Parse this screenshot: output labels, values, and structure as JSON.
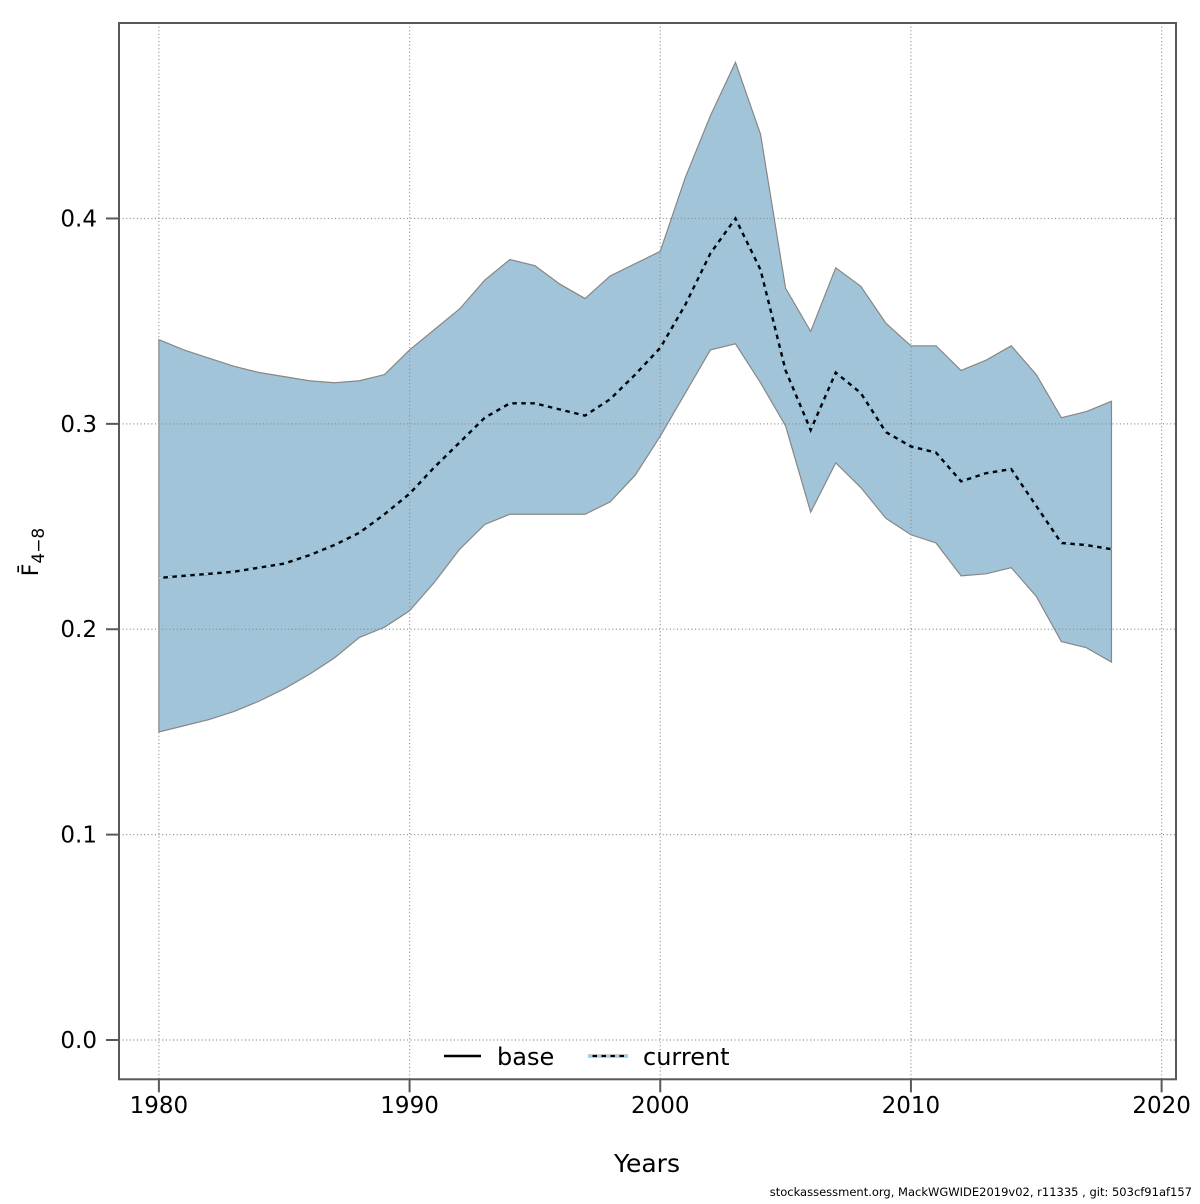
{
  "page": {
    "footer": "stockassessment.org, MackWGWIDE2019v02, r11335 , git: 503cf91af157"
  },
  "chart_data": {
    "type": "line",
    "title": "",
    "xlabel": "Years",
    "ylabel_base": "F̄",
    "ylabel_sub": "4−8",
    "grid": true,
    "legend_position": "bottom-center",
    "x_ticks": [
      1980,
      1990,
      2000,
      2010,
      2020
    ],
    "y_ticks": [
      "0.0",
      "0.1",
      "0.2",
      "0.3",
      "0.4"
    ],
    "xlim": [
      1978.4,
      2020.6
    ],
    "ylim": [
      -0.019,
      0.495
    ],
    "years": [
      1980,
      1981,
      1982,
      1983,
      1984,
      1985,
      1986,
      1987,
      1988,
      1989,
      1990,
      1991,
      1992,
      1993,
      1994,
      1995,
      1996,
      1997,
      1998,
      1999,
      2000,
      2001,
      2002,
      2003,
      2004,
      2005,
      2006,
      2007,
      2008,
      2009,
      2010,
      2011,
      2012,
      2013,
      2014,
      2015,
      2016,
      2017,
      2018
    ],
    "series": [
      {
        "name": "base",
        "style": "solid",
        "color": "#000000"
      },
      {
        "name": "current",
        "style": "dotted",
        "color": "#9fd0ec"
      }
    ],
    "series_note": "base and current lines coincide exactly in the plot",
    "mean": [
      0.225,
      0.226,
      0.227,
      0.228,
      0.23,
      0.232,
      0.236,
      0.241,
      0.247,
      0.256,
      0.266,
      0.279,
      0.291,
      0.303,
      0.31,
      0.31,
      0.307,
      0.304,
      0.312,
      0.324,
      0.337,
      0.358,
      0.383,
      0.4,
      0.375,
      0.326,
      0.297,
      0.325,
      0.315,
      0.296,
      0.289,
      0.286,
      0.272,
      0.276,
      0.278,
      0.26,
      0.242,
      0.241,
      0.239
    ],
    "ci_upper": [
      0.341,
      0.336,
      0.332,
      0.328,
      0.325,
      0.323,
      0.321,
      0.32,
      0.321,
      0.324,
      0.336,
      0.346,
      0.356,
      0.37,
      0.38,
      0.377,
      0.368,
      0.361,
      0.372,
      0.378,
      0.384,
      0.42,
      0.45,
      0.476,
      0.441,
      0.366,
      0.345,
      0.376,
      0.367,
      0.349,
      0.338,
      0.338,
      0.326,
      0.331,
      0.338,
      0.324,
      0.303,
      0.306,
      0.311
    ],
    "ci_lower": [
      0.15,
      0.153,
      0.156,
      0.16,
      0.165,
      0.171,
      0.178,
      0.186,
      0.196,
      0.201,
      0.209,
      0.223,
      0.239,
      0.251,
      0.256,
      0.256,
      0.256,
      0.256,
      0.262,
      0.275,
      0.294,
      0.315,
      0.336,
      0.339,
      0.32,
      0.299,
      0.257,
      0.281,
      0.269,
      0.254,
      0.246,
      0.242,
      0.226,
      0.227,
      0.23,
      0.216,
      0.194,
      0.191,
      0.184
    ],
    "colors": {
      "band_fill": "#a2c4d8",
      "band_edge": "#878787",
      "grid": "#8c8c8c",
      "frame": "#595959",
      "base_line": "#000000",
      "current_dash": "#9fd0ec"
    }
  }
}
